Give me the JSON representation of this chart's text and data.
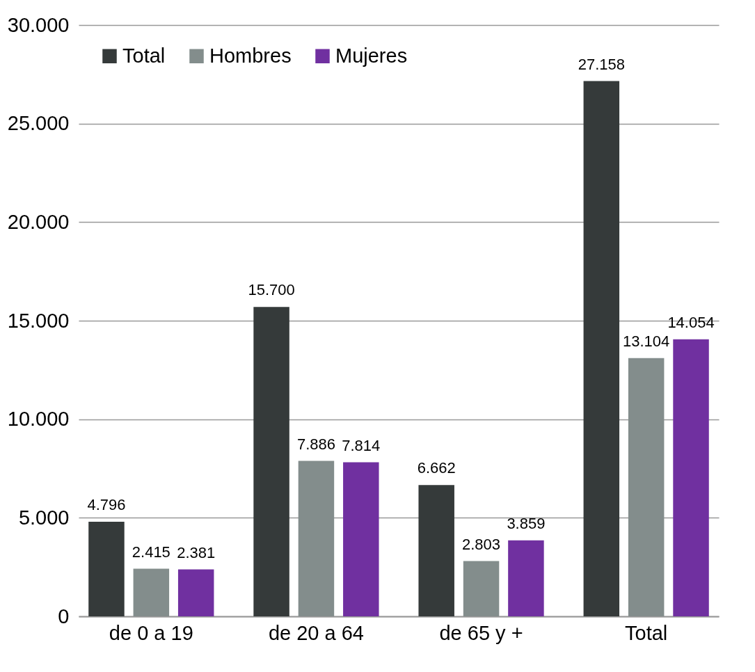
{
  "chart_data": {
    "type": "bar",
    "categories": [
      "de 0 a 19",
      "de 20 a 64",
      "de 65 y +",
      "Total"
    ],
    "series": [
      {
        "name": "Total",
        "color": "#353a3a",
        "values": [
          4796,
          15700,
          6662,
          27158
        ],
        "value_labels": [
          "4.796",
          "15.700",
          "6.662",
          "27.158"
        ]
      },
      {
        "name": "Hombres",
        "color": "#838d8c",
        "values": [
          2415,
          7886,
          2803,
          13104
        ],
        "value_labels": [
          "2.415",
          "7.886",
          "2.803",
          "13.104"
        ]
      },
      {
        "name": "Mujeres",
        "color": "#7030a0",
        "values": [
          2381,
          7814,
          3859,
          14054
        ],
        "value_labels": [
          "2.381",
          "7.814",
          "3.859",
          "14.054"
        ]
      }
    ],
    "ylim": [
      0,
      30000
    ],
    "yticks": [
      0,
      {
        "value": 5000,
        "label": "5.000"
      },
      {
        "value": 10000,
        "label": "10.000"
      },
      {
        "value": 15000,
        "label": "15.000"
      },
      {
        "value": 20000,
        "label": "20.000"
      },
      {
        "value": 25000,
        "label": "25.000"
      },
      {
        "value": 30000,
        "label": "30.000"
      }
    ],
    "grid": "y",
    "legend": "top left"
  }
}
